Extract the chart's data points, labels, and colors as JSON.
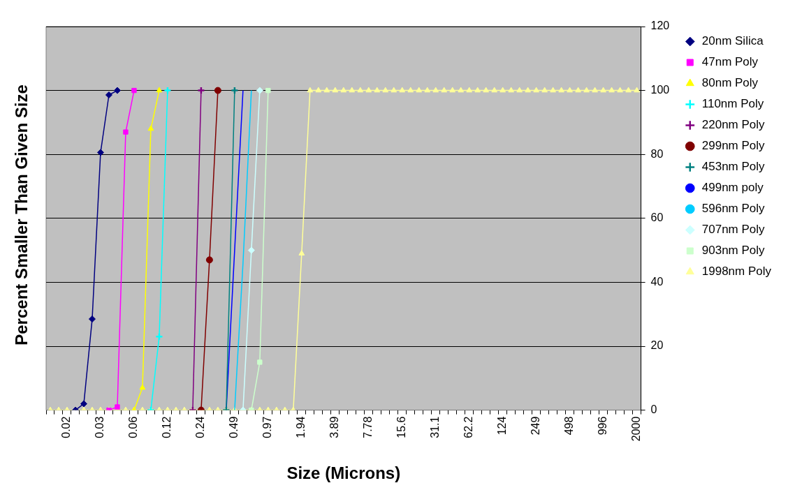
{
  "chart_data": {
    "type": "line",
    "xlabel": "Size (Microns)",
    "ylabel": "Percent Smaller Than Given Size",
    "categories": [
      null,
      null,
      "0.02",
      null,
      null,
      null,
      "0.03",
      null,
      null,
      null,
      "0.06",
      null,
      null,
      null,
      "0.12",
      null,
      null,
      null,
      "0.24",
      null,
      null,
      null,
      "0.49",
      null,
      null,
      null,
      "0.97",
      null,
      null,
      null,
      "1.94",
      null,
      null,
      null,
      "3.89",
      null,
      null,
      null,
      "7.78",
      null,
      null,
      null,
      "15.6",
      null,
      null,
      null,
      "31.1",
      null,
      null,
      null,
      "62.2",
      null,
      null,
      null,
      "124",
      null,
      null,
      null,
      "249",
      null,
      null,
      null,
      "498",
      null,
      null,
      null,
      "996",
      null,
      null,
      null,
      "2000"
    ],
    "ylim": [
      0,
      120
    ],
    "yticks": [
      0,
      20,
      40,
      60,
      80,
      100,
      120
    ],
    "grid": "y",
    "legend": "right",
    "series": [
      {
        "name": "20nm Silica",
        "color": "#000080",
        "marker": "diamond",
        "values": [
          null,
          null,
          null,
          0,
          2,
          28.5,
          80.6,
          98.6,
          100,
          null,
          null,
          null,
          null,
          null,
          null,
          null,
          null,
          null,
          null,
          null,
          null,
          null,
          null,
          null,
          null,
          null,
          null,
          null,
          null,
          null,
          null,
          null,
          null,
          null,
          null,
          null,
          null,
          null,
          null,
          null,
          null,
          null,
          null,
          null,
          null,
          null,
          null,
          null,
          null,
          null,
          null,
          null,
          null,
          null,
          null,
          null,
          null,
          null,
          null,
          null,
          null,
          null,
          null,
          null,
          null,
          null,
          null,
          null,
          null,
          null,
          null
        ]
      },
      {
        "name": "47nm Poly",
        "color": "#ff00ff",
        "marker": "square",
        "values": [
          null,
          null,
          null,
          null,
          null,
          null,
          null,
          0,
          1,
          87,
          100,
          null,
          null,
          null,
          null,
          null,
          null,
          null,
          null,
          null,
          null,
          null,
          null,
          null,
          null,
          null,
          null,
          null,
          null,
          null,
          null,
          null,
          null,
          null,
          null,
          null,
          null,
          null,
          null,
          null,
          null,
          null,
          null,
          null,
          null,
          null,
          null,
          null,
          null,
          null,
          null,
          null,
          null,
          null,
          null,
          null,
          null,
          null,
          null,
          null,
          null,
          null,
          null,
          null,
          null,
          null,
          null,
          null,
          null,
          null,
          null
        ]
      },
      {
        "name": "80nm Poly",
        "color": "#ffff00",
        "marker": "triangle",
        "values": [
          null,
          null,
          null,
          null,
          null,
          null,
          null,
          null,
          null,
          null,
          0,
          7,
          88,
          100,
          null,
          null,
          null,
          null,
          null,
          null,
          null,
          null,
          null,
          null,
          null,
          null,
          null,
          null,
          null,
          null,
          null,
          null,
          null,
          null,
          null,
          null,
          null,
          null,
          null,
          null,
          null,
          null,
          null,
          null,
          null,
          null,
          null,
          null,
          null,
          null,
          null,
          null,
          null,
          null,
          null,
          null,
          null,
          null,
          null,
          null,
          null,
          null,
          null,
          null,
          null,
          null,
          null,
          null,
          null,
          null,
          null
        ]
      },
      {
        "name": "110nm Poly",
        "color": "#00ffff",
        "marker": "cross",
        "values": [
          null,
          null,
          null,
          null,
          null,
          null,
          null,
          null,
          null,
          null,
          null,
          null,
          0,
          23,
          100,
          null,
          null,
          null,
          null,
          null,
          null,
          null,
          null,
          null,
          null,
          null,
          null,
          null,
          null,
          null,
          null,
          null,
          null,
          null,
          null,
          null,
          null,
          null,
          null,
          null,
          null,
          null,
          null,
          null,
          null,
          null,
          null,
          null,
          null,
          null,
          null,
          null,
          null,
          null,
          null,
          null,
          null,
          null,
          null,
          null,
          null,
          null,
          null,
          null,
          null,
          null,
          null,
          null,
          null,
          null,
          null
        ]
      },
      {
        "name": "220nm Poly",
        "color": "#800080",
        "marker": "cross",
        "values": [
          null,
          null,
          null,
          null,
          null,
          null,
          null,
          null,
          null,
          null,
          null,
          null,
          null,
          null,
          null,
          null,
          null,
          0,
          100,
          null,
          null,
          null,
          null,
          null,
          null,
          null,
          null,
          null,
          null,
          null,
          null,
          null,
          null,
          null,
          null,
          null,
          null,
          null,
          null,
          null,
          null,
          null,
          null,
          null,
          null,
          null,
          null,
          null,
          null,
          null,
          null,
          null,
          null,
          null,
          null,
          null,
          null,
          null,
          null,
          null,
          null,
          null,
          null,
          null,
          null,
          null,
          null,
          null,
          null,
          null,
          null
        ]
      },
      {
        "name": "299nm Poly",
        "color": "#800000",
        "marker": "circle",
        "values": [
          null,
          null,
          null,
          null,
          null,
          null,
          null,
          null,
          null,
          null,
          null,
          null,
          null,
          null,
          null,
          null,
          null,
          null,
          0,
          47,
          100,
          null,
          null,
          null,
          null,
          null,
          null,
          null,
          null,
          null,
          null,
          null,
          null,
          null,
          null,
          null,
          null,
          null,
          null,
          null,
          null,
          null,
          null,
          null,
          null,
          null,
          null,
          null,
          null,
          null,
          null,
          null,
          null,
          null,
          null,
          null,
          null,
          null,
          null,
          null,
          null,
          null,
          null,
          null,
          null,
          null,
          null,
          null,
          null,
          null,
          null
        ]
      },
      {
        "name": "453nm Poly",
        "color": "#008080",
        "marker": "cross",
        "values": [
          null,
          null,
          null,
          null,
          null,
          null,
          null,
          null,
          null,
          null,
          null,
          null,
          null,
          null,
          null,
          null,
          null,
          null,
          null,
          null,
          null,
          0,
          100,
          null,
          null,
          null,
          null,
          null,
          null,
          null,
          null,
          null,
          null,
          null,
          null,
          null,
          null,
          null,
          null,
          null,
          null,
          null,
          null,
          null,
          null,
          null,
          null,
          null,
          null,
          null,
          null,
          null,
          null,
          null,
          null,
          null,
          null,
          null,
          null,
          null,
          null,
          null,
          null,
          null,
          null,
          null,
          null,
          null,
          null,
          null,
          null
        ]
      },
      {
        "name": "499nm poly",
        "color": "#0000ff",
        "marker": "none",
        "values": [
          null,
          null,
          null,
          null,
          null,
          null,
          null,
          null,
          null,
          null,
          null,
          null,
          null,
          null,
          null,
          null,
          null,
          null,
          null,
          null,
          null,
          0,
          50,
          100,
          null,
          null,
          null,
          null,
          null,
          null,
          null,
          null,
          null,
          null,
          null,
          null,
          null,
          null,
          null,
          null,
          null,
          null,
          null,
          null,
          null,
          null,
          null,
          null,
          null,
          null,
          null,
          null,
          null,
          null,
          null,
          null,
          null,
          null,
          null,
          null,
          null,
          null,
          null,
          null,
          null,
          null,
          null,
          null,
          null,
          null,
          null
        ]
      },
      {
        "name": "596nm Poly",
        "color": "#00ccff",
        "marker": "none",
        "values": [
          null,
          null,
          null,
          null,
          null,
          null,
          null,
          null,
          null,
          null,
          null,
          null,
          null,
          null,
          null,
          null,
          null,
          null,
          null,
          null,
          null,
          null,
          0,
          46,
          100,
          null,
          null,
          null,
          null,
          null,
          null,
          null,
          null,
          null,
          null,
          null,
          null,
          null,
          null,
          null,
          null,
          null,
          null,
          null,
          null,
          null,
          null,
          null,
          null,
          null,
          null,
          null,
          null,
          null,
          null,
          null,
          null,
          null,
          null,
          null,
          null,
          null,
          null,
          null,
          null,
          null,
          null,
          null,
          null,
          null,
          null
        ]
      },
      {
        "name": "707nm Poly",
        "color": "#ccffff",
        "marker": "diamond",
        "values": [
          null,
          null,
          null,
          null,
          null,
          null,
          null,
          null,
          null,
          null,
          null,
          null,
          null,
          null,
          null,
          null,
          null,
          null,
          null,
          null,
          null,
          null,
          null,
          0,
          50,
          100,
          null,
          null,
          null,
          null,
          null,
          null,
          null,
          null,
          null,
          null,
          null,
          null,
          null,
          null,
          null,
          null,
          null,
          null,
          null,
          null,
          null,
          null,
          null,
          null,
          null,
          null,
          null,
          null,
          null,
          null,
          null,
          null,
          null,
          null,
          null,
          null,
          null,
          null,
          null,
          null,
          null,
          null,
          null,
          null,
          null
        ]
      },
      {
        "name": "903nm Poly",
        "color": "#ccffcc",
        "marker": "square",
        "values": [
          null,
          null,
          null,
          null,
          null,
          null,
          null,
          null,
          null,
          null,
          null,
          null,
          null,
          null,
          null,
          null,
          null,
          null,
          null,
          null,
          null,
          null,
          null,
          null,
          0,
          15,
          100,
          null,
          null,
          null,
          null,
          null,
          null,
          null,
          null,
          null,
          null,
          null,
          null,
          null,
          null,
          null,
          null,
          null,
          null,
          null,
          null,
          null,
          null,
          null,
          null,
          null,
          null,
          null,
          null,
          null,
          null,
          null,
          null,
          null,
          null,
          null,
          null,
          null,
          null,
          null,
          null,
          null,
          null,
          null,
          null
        ]
      },
      {
        "name": "1998nm Poly",
        "color": "#ffff99",
        "marker": "triangle",
        "values": [
          0,
          0,
          0,
          0,
          0,
          0,
          0,
          0,
          0,
          0,
          0,
          0,
          0,
          0,
          0,
          0,
          0,
          0,
          0,
          0,
          0,
          0,
          0,
          0,
          0,
          0,
          0,
          0,
          0,
          0,
          49,
          100,
          100,
          100,
          100,
          100,
          100,
          100,
          100,
          100,
          100,
          100,
          100,
          100,
          100,
          100,
          100,
          100,
          100,
          100,
          100,
          100,
          100,
          100,
          100,
          100,
          100,
          100,
          100,
          100,
          100,
          100,
          100,
          100,
          100,
          100,
          100,
          100,
          100,
          100,
          100
        ]
      }
    ]
  }
}
